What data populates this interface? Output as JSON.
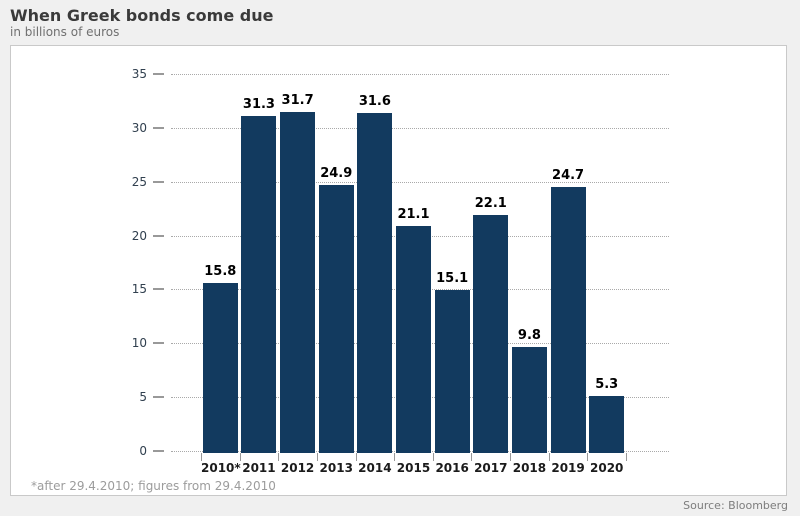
{
  "page": {
    "title": "When Greek bonds come due",
    "subtitle": "in billions of euros",
    "footnote": "*after 29.4.2010; figures from 29.4.2010",
    "source": "Source: Bloomberg"
  },
  "chart_data": {
    "type": "bar",
    "title": "When Greek bonds come due",
    "subtitle": "in billions of euros",
    "categories": [
      "2010*",
      "2011",
      "2012",
      "2013",
      "2014",
      "2015",
      "2016",
      "2017",
      "2018",
      "2019",
      "2020"
    ],
    "values": [
      15.8,
      31.3,
      31.7,
      24.9,
      31.6,
      21.1,
      15.1,
      22.1,
      9.8,
      24.7,
      5.3
    ],
    "xlabel": "",
    "ylabel": "",
    "ylim": [
      0,
      35
    ],
    "ytick_step": 5,
    "yticks": [
      0,
      5,
      10,
      15,
      20,
      25,
      30,
      35
    ],
    "grid": "horizontal-dotted",
    "legend": "none",
    "value_labels": true,
    "bar_color": "#123a5f",
    "footnote": "*after 29.4.2010; figures from 29.4.2010",
    "source": "Source: Bloomberg"
  },
  "colors": {
    "page_background": "#f0f0f0",
    "plot_background": "#ffffff",
    "plot_border": "#c9c9c9",
    "bar": "#123a5f",
    "gridline": "#a9a9a9",
    "tick": "#999999",
    "y_label": "#31404f",
    "x_label": "#1b1b1b",
    "value_label": "#000000",
    "title": "#3a3a3a",
    "subtitle": "#707070",
    "footnote": "#9c9c9c",
    "source": "#7d7d7d"
  }
}
